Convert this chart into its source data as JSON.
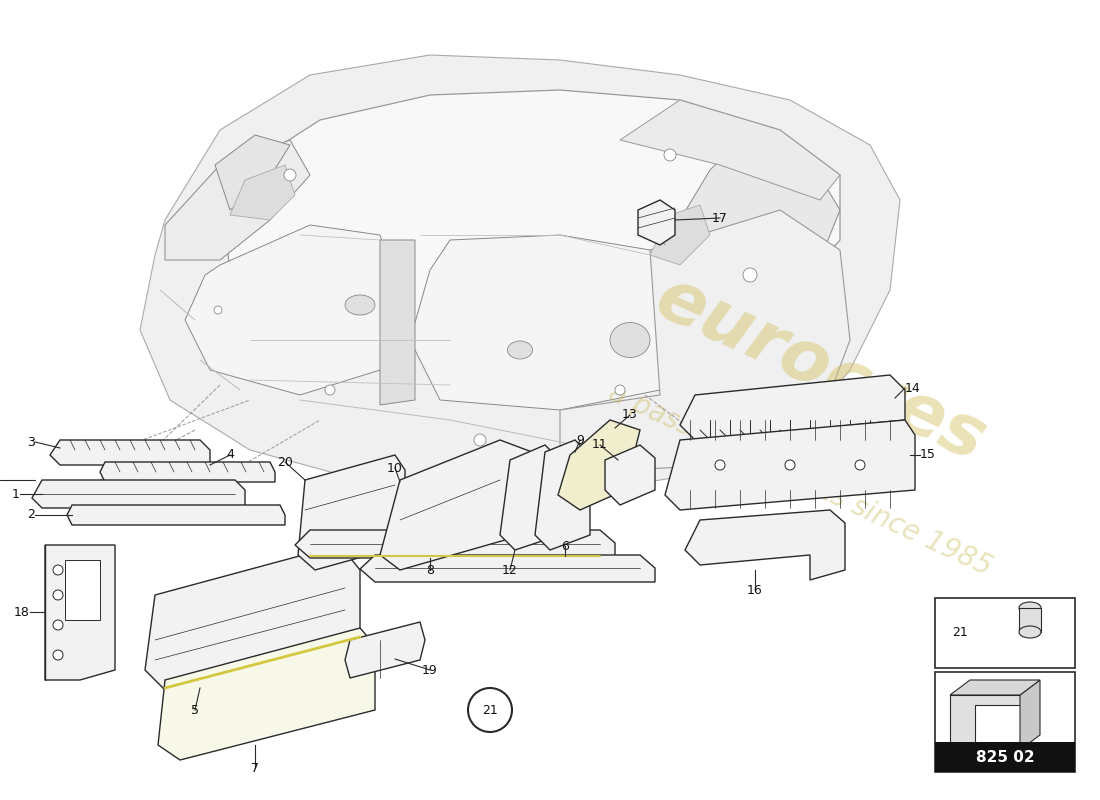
{
  "background_color": "#ffffff",
  "line_color": "#2a2a2a",
  "light_line": "#888888",
  "fill_light": "#f2f2f2",
  "fill_mid": "#e0e0e0",
  "fill_dark": "#c8c8c8",
  "yellow_fill": "#f0eecc",
  "watermark_color1": "#d4c060",
  "watermark_color2": "#c8b855",
  "part_number_bg": "#111111",
  "part_number_text": "#ffffff",
  "part_number": "825 02",
  "car_body_color": "#e8e8e8",
  "car_edge_color": "#555555"
}
